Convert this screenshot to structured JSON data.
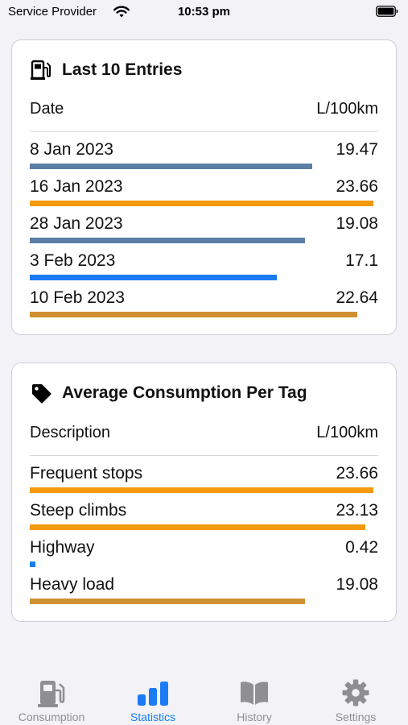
{
  "status_bar": {
    "carrier": "Service Provider",
    "time": "10:53 pm"
  },
  "entries_card": {
    "title": "Last 10 Entries",
    "icon": "fuel-pump-icon",
    "col_left": "Date",
    "col_right": "L/100km",
    "rows": [
      {
        "label": "8 Jan 2023",
        "value": "19.47",
        "fraction": 0.81,
        "color": "#5a7fa6"
      },
      {
        "label": "16 Jan 2023",
        "value": "23.66",
        "fraction": 0.985,
        "color": "#f59a0c"
      },
      {
        "label": "28 Jan 2023",
        "value": "19.08",
        "fraction": 0.79,
        "color": "#5a7fa6"
      },
      {
        "label": "3 Feb 2023",
        "value": "17.1",
        "fraction": 0.71,
        "color": "#1a7cf5"
      },
      {
        "label": "10 Feb 2023",
        "value": "22.64",
        "fraction": 0.94,
        "color": "#cf9032"
      }
    ]
  },
  "tags_card": {
    "title": "Average Consumption Per Tag",
    "icon": "tag-icon",
    "col_left": "Description",
    "col_right": "L/100km",
    "rows": [
      {
        "label": "Frequent stops",
        "value": "23.66",
        "fraction": 0.985,
        "color": "#f59a0c"
      },
      {
        "label": "Steep climbs",
        "value": "23.13",
        "fraction": 0.963,
        "color": "#f59a0c"
      },
      {
        "label": "Highway",
        "value": "0.42",
        "fraction": 0.017,
        "color": "#1a7cf5"
      },
      {
        "label": "Heavy load",
        "value": "19.08",
        "fraction": 0.79,
        "color": "#cf9032"
      }
    ]
  },
  "tab_bar": {
    "tabs": [
      {
        "label": "Consumption",
        "icon": "fuel-pump-icon",
        "active": false
      },
      {
        "label": "Statistics",
        "icon": "bar-chart-icon",
        "active": true
      },
      {
        "label": "History",
        "icon": "book-icon",
        "active": false
      },
      {
        "label": "Settings",
        "icon": "gear-icon",
        "active": false
      }
    ]
  }
}
